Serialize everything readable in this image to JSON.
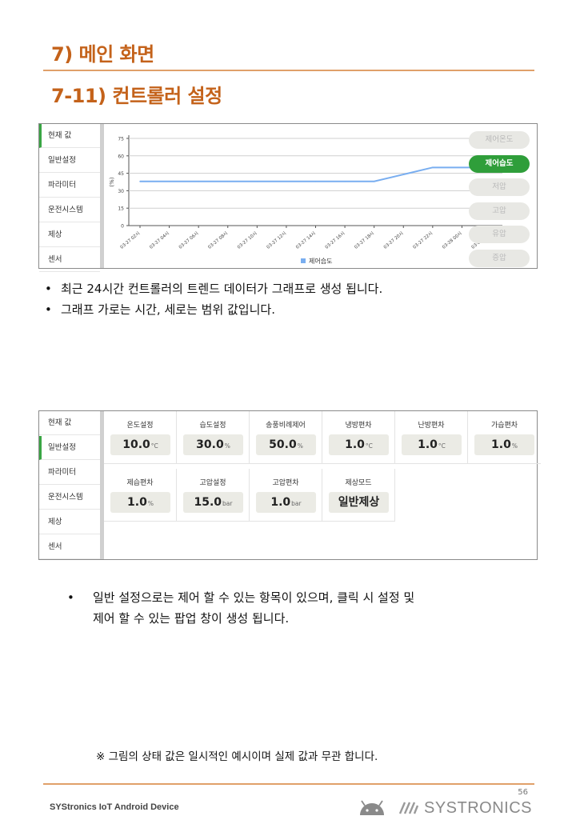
{
  "heading": {
    "section": "7) 메인 화면",
    "subsection": "7-11) 컨트롤러 설정"
  },
  "sidebar_top": {
    "items": [
      "현재 값",
      "일반설정",
      "파라미터",
      "운전시스템",
      "제상",
      "센서"
    ],
    "active_index": 0
  },
  "chart_buttons": {
    "items": [
      "제어온도",
      "제어습도",
      "저압",
      "고압",
      "유압",
      "증압"
    ],
    "active_index": 1
  },
  "chart_data": {
    "type": "line",
    "ylabel": "(%)",
    "yticks": [
      "0",
      "15",
      "30",
      "45",
      "60",
      "75"
    ],
    "ylim": [
      0,
      75
    ],
    "categories": [
      "03-27 02시",
      "03-27 04시",
      "03-27 06시",
      "03-27 08시",
      "03-27 10시",
      "03-27 12시",
      "03-27 14시",
      "03-27 16시",
      "03-27 18시",
      "03-27 20시",
      "03-27 22시",
      "03-28 00시",
      "03-28 02시"
    ],
    "series": [
      {
        "name": "제어습도",
        "values": [
          38,
          38,
          38,
          38,
          38,
          38,
          38,
          38,
          38,
          44,
          50,
          50,
          50
        ]
      }
    ],
    "line_color": "#79aef0",
    "legend_position": "bottom"
  },
  "bullets_1": [
    "최근 24시간 컨트롤러의 트렌드 데이터가 그래프로 생성 됩니다.",
    "그래프 가로는 시간, 세로는 범위 값입니다."
  ],
  "sidebar_bottom": {
    "items": [
      "현재 값",
      "일반설정",
      "파라미터",
      "운전시스템",
      "제상",
      "센서"
    ],
    "active_index": 1
  },
  "settings": [
    {
      "label": "온도설정",
      "value": "10.0",
      "unit": "°C"
    },
    {
      "label": "습도설정",
      "value": "30.0",
      "unit": "%"
    },
    {
      "label": "송풍비례제어",
      "value": "50.0",
      "unit": "%"
    },
    {
      "label": "냉방편차",
      "value": "1.0",
      "unit": "°C"
    },
    {
      "label": "난방편차",
      "value": "1.0",
      "unit": "°C"
    },
    {
      "label": "가습편차",
      "value": "1.0",
      "unit": "%"
    },
    {
      "label": "제습편차",
      "value": "1.0",
      "unit": "%"
    },
    {
      "label": "고압설정",
      "value": "15.0",
      "unit": "bar"
    },
    {
      "label": "고압편차",
      "value": "1.0",
      "unit": "bar"
    },
    {
      "label": "제상모드",
      "value": "일반제상",
      "unit": ""
    }
  ],
  "bullets_2": [
    "일반 설정으로는 제어 할 수 있는 항목이 있으며, 클릭 시 설정 및",
    "제어 할 수 있는 팝업 창이 생성 됩니다."
  ],
  "bullet_symbol": "•",
  "note": "※ 그림의 상태 값은 일시적인 예시이며 실제 값과 무관 합니다.",
  "footer": {
    "left": "SYStronics IoT Android Device",
    "page": "56",
    "brand": "SYSTRONICS"
  }
}
